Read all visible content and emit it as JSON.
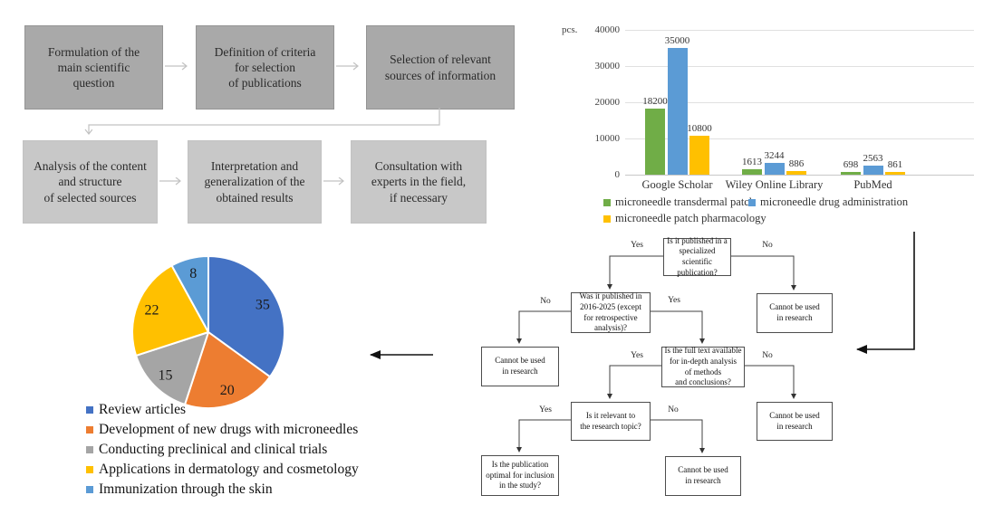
{
  "method_flow": {
    "steps": [
      {
        "label": "Formulation of the\nmain scientific\nquestion"
      },
      {
        "label": "Definition of criteria\nfor selection\nof publications"
      },
      {
        "label": "Selection of relevant\nsources of information"
      },
      {
        "label": "Analysis of the content\nand structure\nof selected sources"
      },
      {
        "label": "Interpretation and\ngeneralization of the\nobtained results"
      },
      {
        "label": "Consultation with\nexperts in the field,\nif necessary"
      }
    ]
  },
  "chart_data": [
    {
      "type": "bar",
      "unit_label": "pcs.",
      "categories": [
        "Google Scholar",
        "Wiley Online Library",
        "PubMed"
      ],
      "series": [
        {
          "name": "microneedle transdermal patch",
          "color": "#70ad47",
          "values": [
            18200,
            1613,
            698
          ]
        },
        {
          "name": "microneedle drug administration",
          "color": "#5b9bd5",
          "values": [
            35000,
            3244,
            2563
          ]
        },
        {
          "name": "microneedle patch pharmacology",
          "color": "#ffc000",
          "values": [
            10800,
            886,
            861
          ]
        }
      ],
      "ylim": [
        0,
        40000
      ],
      "yticks": [
        0,
        10000,
        20000,
        30000,
        40000
      ],
      "grid": true,
      "legend_position": "bottom"
    },
    {
      "type": "pie",
      "values": [
        35,
        20,
        15,
        22,
        8
      ],
      "labels": [
        "Review articles",
        "Development of new drugs with microneedles",
        "Conducting preclinical and clinical trials",
        "Applications in dermatology and cosmetology",
        "Immunization through the skin"
      ],
      "colors": [
        "#4472c4",
        "#ed7d31",
        "#a5a5a5",
        "#ffc000",
        "#5b9bd5"
      ],
      "legend_position": "bottom-left"
    }
  ],
  "decision_flow": {
    "yes_label": "Yes",
    "no_label": "No",
    "nodes": [
      {
        "id": "q-specialized",
        "text": "Is it published in a\nspecialized scientific\npublication?"
      },
      {
        "id": "q-year-range",
        "text": "Was it published in\n2016-2025 (except\nfor retrospective\nanalysis)?"
      },
      {
        "id": "reject-after-year",
        "text": "Cannot be used\nin research"
      },
      {
        "id": "q-full-text",
        "text": "Is the full text available\nfor in-depth analysis\nof methods\nand conclusions?"
      },
      {
        "id": "reject-after-specialized",
        "text": "Cannot be used\nin research"
      },
      {
        "id": "q-relevant",
        "text": "Is it relevant to\nthe research topic?"
      },
      {
        "id": "reject-after-fulltext",
        "text": "Cannot be used\nin research"
      },
      {
        "id": "q-optimal",
        "text": "Is the publication\noptimal for inclusion\nin the study?"
      },
      {
        "id": "reject-after-relevant",
        "text": "Cannot be used\nin research"
      }
    ]
  }
}
